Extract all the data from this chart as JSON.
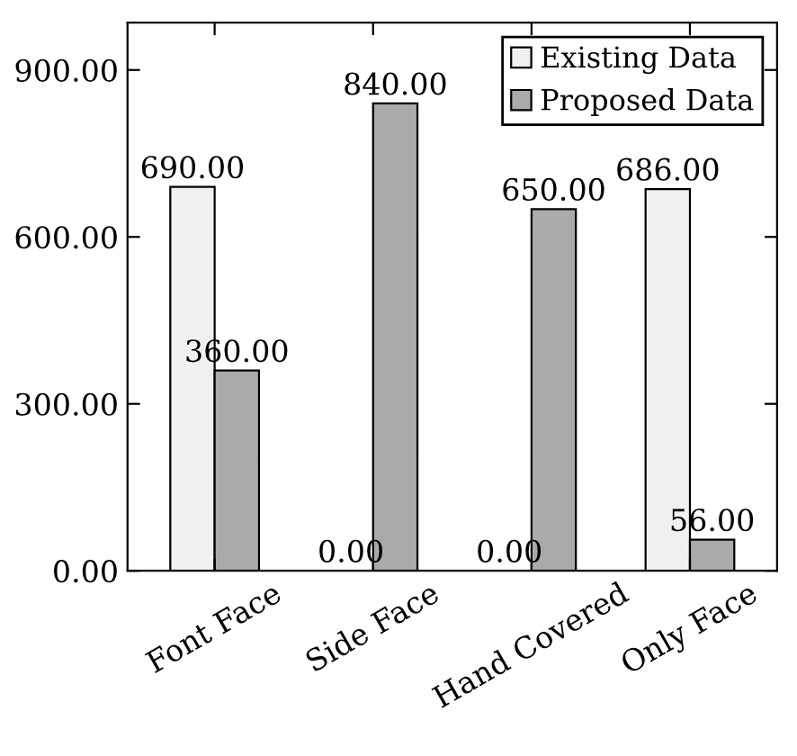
{
  "chart_data": {
    "type": "bar",
    "categories": [
      "Font Face",
      "Side Face",
      "Hand Covered",
      "Only Face"
    ],
    "series": [
      {
        "name": "Existing Data",
        "color": "#f0f0f0",
        "values": [
          690,
          0,
          0,
          686
        ],
        "value_labels": [
          "690.00",
          "0.00",
          "0.00",
          "686.00"
        ]
      },
      {
        "name": "Proposed Data",
        "color": "#aaaaaa",
        "values": [
          360,
          840,
          650,
          56
        ],
        "value_labels": [
          "360.00",
          "840.00",
          "650.00",
          "56.00"
        ]
      }
    ],
    "ylim": [
      0,
      985
    ],
    "yticks": [
      {
        "value": 0,
        "label": "0.00"
      },
      {
        "value": 300,
        "label": "300.00"
      },
      {
        "value": 600,
        "label": "600.00"
      },
      {
        "value": 900,
        "label": "900.00"
      }
    ],
    "grid": false,
    "legend": "top right"
  }
}
